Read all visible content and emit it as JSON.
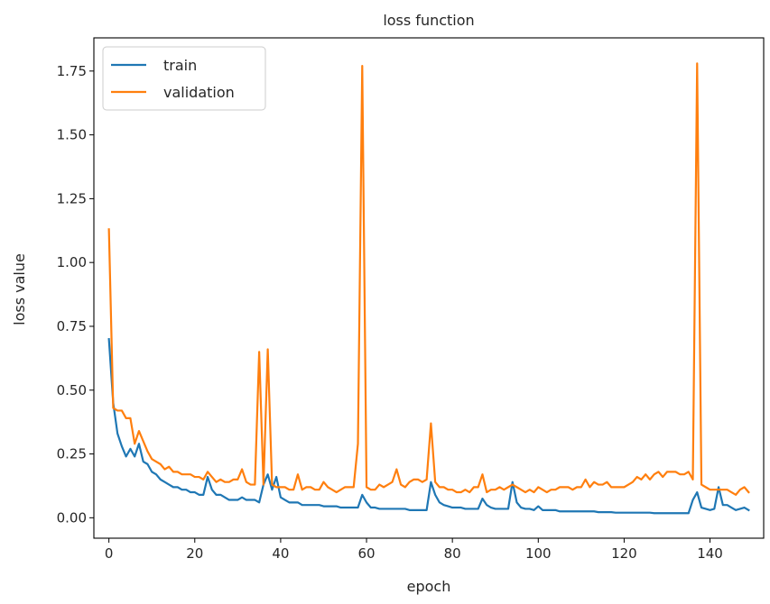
{
  "chart_data": {
    "type": "line",
    "title": "loss function",
    "xlabel": "epoch",
    "ylabel": "loss value",
    "xlim": [
      -3.5,
      152.5
    ],
    "ylim": [
      -0.08,
      1.88
    ],
    "xticks": [
      0,
      20,
      40,
      60,
      80,
      100,
      120,
      140
    ],
    "xtick_labels": [
      "0",
      "20",
      "40",
      "60",
      "80",
      "100",
      "120",
      "140"
    ],
    "yticks": [
      0.0,
      0.25,
      0.5,
      0.75,
      1.0,
      1.25,
      1.5,
      1.75
    ],
    "ytick_labels": [
      "0.00",
      "0.25",
      "0.50",
      "0.75",
      "1.00",
      "1.25",
      "1.50",
      "1.75"
    ],
    "grid": false,
    "legend_position": "top-left",
    "x": [
      0,
      1,
      2,
      3,
      4,
      5,
      6,
      7,
      8,
      9,
      10,
      11,
      12,
      13,
      14,
      15,
      16,
      17,
      18,
      19,
      20,
      21,
      22,
      23,
      24,
      25,
      26,
      27,
      28,
      29,
      30,
      31,
      32,
      33,
      34,
      35,
      36,
      37,
      38,
      39,
      40,
      41,
      42,
      43,
      44,
      45,
      46,
      47,
      48,
      49,
      50,
      51,
      52,
      53,
      54,
      55,
      56,
      57,
      58,
      59,
      60,
      61,
      62,
      63,
      64,
      65,
      66,
      67,
      68,
      69,
      70,
      71,
      72,
      73,
      74,
      75,
      76,
      77,
      78,
      79,
      80,
      81,
      82,
      83,
      84,
      85,
      86,
      87,
      88,
      89,
      90,
      91,
      92,
      93,
      94,
      95,
      96,
      97,
      98,
      99,
      100,
      101,
      102,
      103,
      104,
      105,
      106,
      107,
      108,
      109,
      110,
      111,
      112,
      113,
      114,
      115,
      116,
      117,
      118,
      119,
      120,
      121,
      122,
      123,
      124,
      125,
      126,
      127,
      128,
      129,
      130,
      131,
      132,
      133,
      134,
      135,
      136,
      137,
      138,
      139,
      140,
      141,
      142,
      143,
      144,
      145,
      146,
      147,
      148,
      149
    ],
    "series": [
      {
        "name": "train",
        "color": "#1f77b4",
        "values": [
          0.7,
          0.45,
          0.33,
          0.28,
          0.24,
          0.27,
          0.24,
          0.29,
          0.22,
          0.21,
          0.18,
          0.17,
          0.15,
          0.14,
          0.13,
          0.12,
          0.12,
          0.11,
          0.11,
          0.1,
          0.1,
          0.09,
          0.09,
          0.16,
          0.11,
          0.09,
          0.09,
          0.08,
          0.07,
          0.07,
          0.07,
          0.08,
          0.07,
          0.07,
          0.07,
          0.06,
          0.13,
          0.17,
          0.11,
          0.16,
          0.08,
          0.07,
          0.06,
          0.06,
          0.06,
          0.05,
          0.05,
          0.05,
          0.05,
          0.05,
          0.045,
          0.045,
          0.045,
          0.045,
          0.04,
          0.04,
          0.04,
          0.04,
          0.04,
          0.09,
          0.06,
          0.04,
          0.04,
          0.035,
          0.035,
          0.035,
          0.035,
          0.035,
          0.035,
          0.035,
          0.03,
          0.03,
          0.03,
          0.03,
          0.03,
          0.14,
          0.09,
          0.06,
          0.05,
          0.045,
          0.04,
          0.04,
          0.04,
          0.035,
          0.035,
          0.035,
          0.035,
          0.075,
          0.05,
          0.04,
          0.035,
          0.035,
          0.035,
          0.035,
          0.14,
          0.06,
          0.04,
          0.035,
          0.035,
          0.03,
          0.045,
          0.03,
          0.03,
          0.03,
          0.03,
          0.025,
          0.025,
          0.025,
          0.025,
          0.025,
          0.025,
          0.025,
          0.025,
          0.025,
          0.022,
          0.022,
          0.022,
          0.022,
          0.02,
          0.02,
          0.02,
          0.02,
          0.02,
          0.02,
          0.02,
          0.02,
          0.02,
          0.018,
          0.018,
          0.018,
          0.018,
          0.018,
          0.018,
          0.018,
          0.018,
          0.018,
          0.07,
          0.1,
          0.04,
          0.035,
          0.03,
          0.035,
          0.12,
          0.05,
          0.05,
          0.04,
          0.03,
          0.035,
          0.04,
          0.03
        ]
      },
      {
        "name": "validation",
        "color": "#ff7f0e",
        "values": [
          1.13,
          0.43,
          0.42,
          0.42,
          0.39,
          0.39,
          0.29,
          0.34,
          0.3,
          0.26,
          0.23,
          0.22,
          0.21,
          0.19,
          0.2,
          0.18,
          0.18,
          0.17,
          0.17,
          0.17,
          0.16,
          0.16,
          0.15,
          0.18,
          0.16,
          0.14,
          0.15,
          0.14,
          0.14,
          0.15,
          0.15,
          0.19,
          0.14,
          0.13,
          0.13,
          0.65,
          0.13,
          0.66,
          0.13,
          0.12,
          0.12,
          0.12,
          0.11,
          0.11,
          0.17,
          0.11,
          0.12,
          0.12,
          0.11,
          0.11,
          0.14,
          0.12,
          0.11,
          0.1,
          0.11,
          0.12,
          0.12,
          0.12,
          0.29,
          1.77,
          0.12,
          0.11,
          0.11,
          0.13,
          0.12,
          0.13,
          0.14,
          0.19,
          0.13,
          0.12,
          0.14,
          0.15,
          0.15,
          0.14,
          0.15,
          0.37,
          0.14,
          0.12,
          0.12,
          0.11,
          0.11,
          0.1,
          0.1,
          0.11,
          0.1,
          0.12,
          0.12,
          0.17,
          0.1,
          0.11,
          0.11,
          0.12,
          0.11,
          0.12,
          0.13,
          0.12,
          0.11,
          0.1,
          0.11,
          0.1,
          0.12,
          0.11,
          0.1,
          0.11,
          0.11,
          0.12,
          0.12,
          0.12,
          0.11,
          0.12,
          0.12,
          0.15,
          0.12,
          0.14,
          0.13,
          0.13,
          0.14,
          0.12,
          0.12,
          0.12,
          0.12,
          0.13,
          0.14,
          0.16,
          0.15,
          0.17,
          0.15,
          0.17,
          0.18,
          0.16,
          0.18,
          0.18,
          0.18,
          0.17,
          0.17,
          0.18,
          0.15,
          1.78,
          0.13,
          0.12,
          0.11,
          0.11,
          0.11,
          0.11,
          0.11,
          0.1,
          0.09,
          0.11,
          0.12,
          0.1
        ]
      }
    ]
  }
}
